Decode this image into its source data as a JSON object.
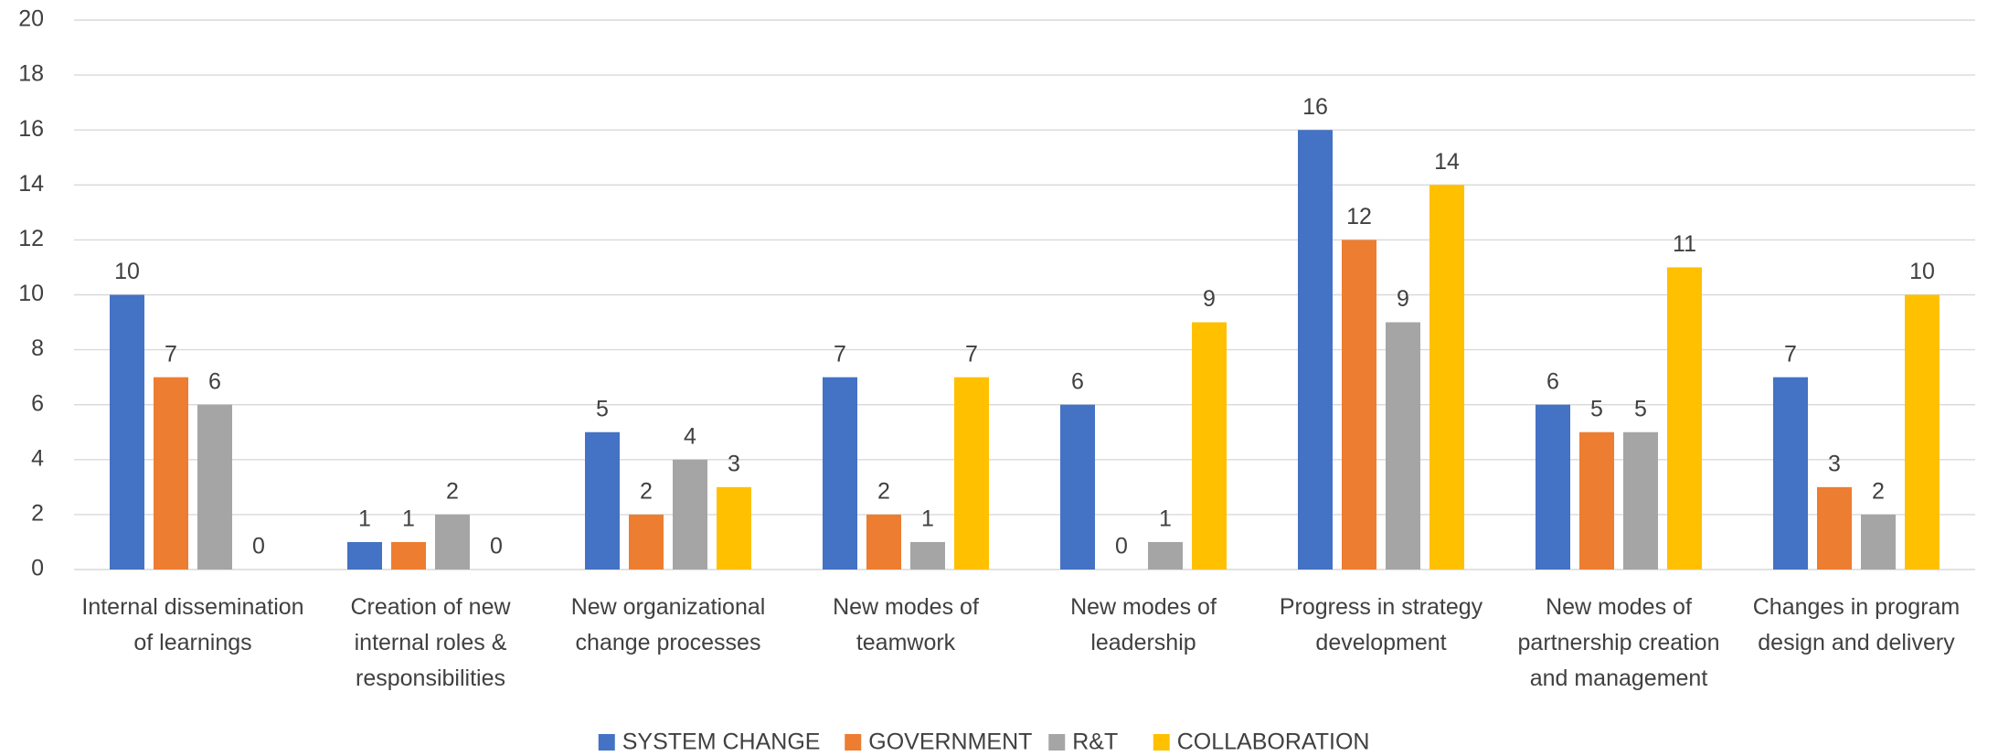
{
  "chart_data": {
    "type": "bar",
    "categories": [
      "Internal dissemination of learnings",
      "Creation of new internal roles & responsibilities",
      "New organizational change processes",
      "New modes of teamwork",
      "New modes of leadership",
      "Progress in strategy development",
      "New modes of partnership creation and management",
      "Changes in program design and delivery"
    ],
    "series": [
      {
        "name": "SYSTEM CHANGE",
        "color": "#4472c4",
        "values": [
          10,
          1,
          5,
          7,
          6,
          16,
          6,
          7
        ]
      },
      {
        "name": "GOVERNMENT",
        "color": "#ed7d31",
        "values": [
          7,
          1,
          2,
          2,
          0,
          12,
          5,
          3
        ]
      },
      {
        "name": "R&T",
        "color": "#a5a5a5",
        "values": [
          6,
          2,
          4,
          1,
          1,
          9,
          5,
          2
        ]
      },
      {
        "name": "COLLABORATION",
        "color": "#ffc000",
        "values": [
          0,
          0,
          3,
          7,
          9,
          14,
          11,
          10
        ]
      }
    ],
    "ylim": [
      0,
      20
    ],
    "yticks": [
      0,
      2,
      4,
      6,
      8,
      10,
      12,
      14,
      16,
      18,
      20
    ],
    "grid": true,
    "legend": "bottom"
  }
}
